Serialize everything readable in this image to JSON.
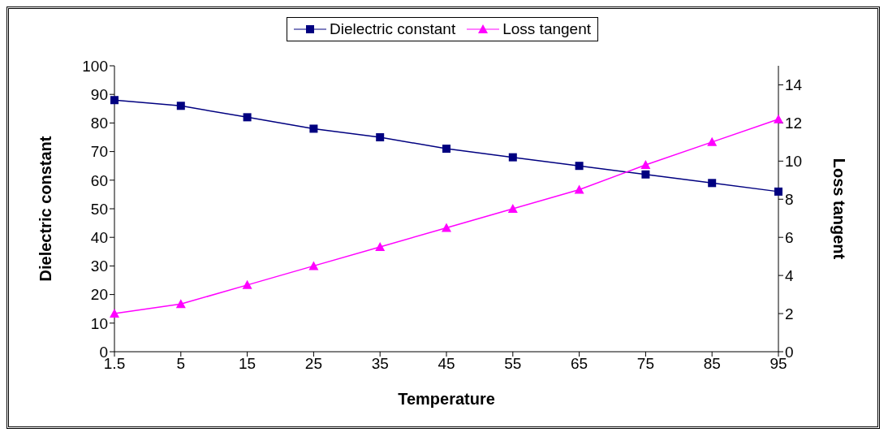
{
  "chart_data": {
    "type": "line",
    "xlabel": "Temperature",
    "ylabel": "Dielectric constant",
    "y2label": "Loss tangent",
    "categories": [
      "1.5",
      "5",
      "15",
      "25",
      "35",
      "45",
      "55",
      "65",
      "75",
      "85",
      "95"
    ],
    "series": [
      {
        "name": "Dielectric constant",
        "color": "#000080",
        "marker": "square",
        "values": [
          88,
          86,
          82,
          78,
          75,
          71,
          68,
          65,
          62,
          59,
          56
        ]
      },
      {
        "name": "Loss tangent",
        "color": "#ff00ff",
        "marker": "triangle",
        "axis": "y2",
        "values": [
          2,
          2.5,
          3.5,
          4.5,
          5.5,
          6.5,
          7.5,
          8.5,
          9.8,
          11,
          12.2
        ]
      }
    ],
    "ylim": [
      0,
      100
    ],
    "yticks": [
      0,
      10,
      20,
      30,
      40,
      50,
      60,
      70,
      80,
      90,
      100
    ],
    "y2lim": [
      0,
      15
    ],
    "y2ticks": [
      0,
      2,
      4,
      6,
      8,
      10,
      12,
      14
    ],
    "grid": false,
    "legend": "top",
    "line_style": "solid"
  }
}
